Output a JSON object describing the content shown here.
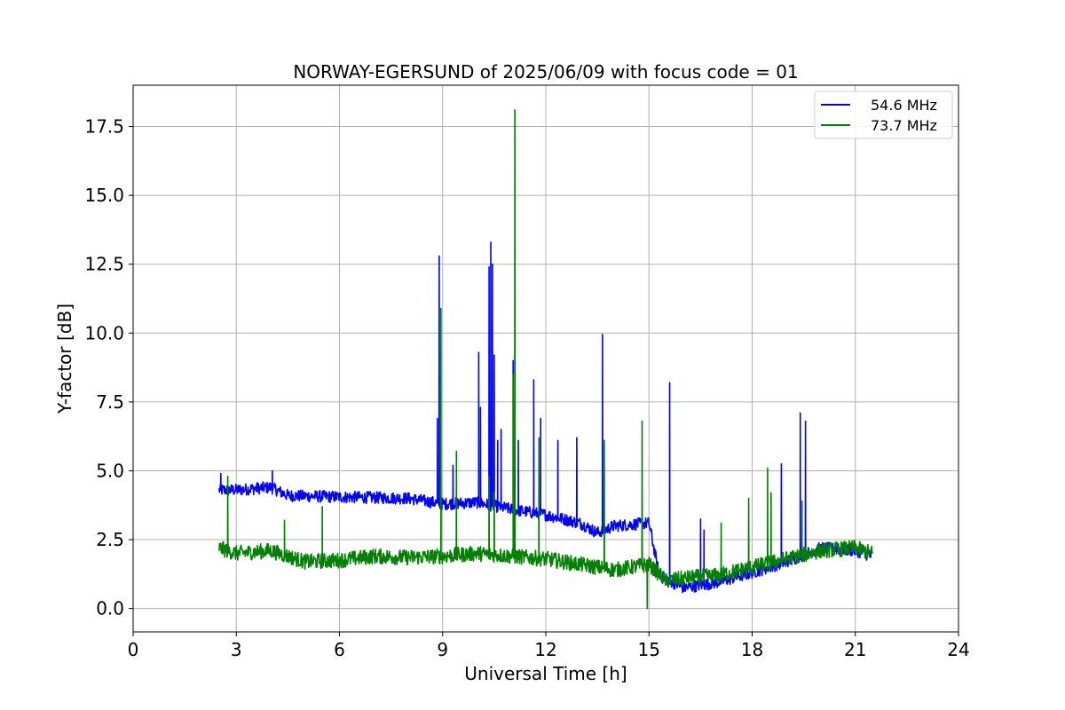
{
  "chart_data": {
    "type": "line",
    "title": "NORWAY-EGERSUND of 2025/06/09 with focus code = 01",
    "xlabel": "Universal Time [h]",
    "ylabel": "Y-factor [dB]",
    "xlim": [
      0,
      24
    ],
    "ylim": [
      -0.85,
      19.0
    ],
    "xticks": [
      0,
      3,
      6,
      9,
      12,
      15,
      18,
      21,
      24
    ],
    "xtick_labels": [
      "0",
      "3",
      "6",
      "9",
      "12",
      "15",
      "18",
      "21",
      "24"
    ],
    "yticks": [
      0,
      2.5,
      5,
      7.5,
      10,
      12.5,
      15,
      17.5
    ],
    "ytick_labels": [
      "0.0",
      "2.5",
      "5.0",
      "7.5",
      "10.0",
      "12.5",
      "15.0",
      "17.5"
    ],
    "grid": true,
    "legend_position": "top-right",
    "series": [
      {
        "name": "54.6 MHz",
        "color": "#0000ff",
        "baseline": [
          [
            2.5,
            4.3
          ],
          [
            3.0,
            4.3
          ],
          [
            4.0,
            4.4
          ],
          [
            4.5,
            4.1
          ],
          [
            6.0,
            4.05
          ],
          [
            8.0,
            4.0
          ],
          [
            9.0,
            3.8
          ],
          [
            10.0,
            3.85
          ],
          [
            11.0,
            3.6
          ],
          [
            12.0,
            3.4
          ],
          [
            13.0,
            3.1
          ],
          [
            13.5,
            2.75
          ],
          [
            14.0,
            3.0
          ],
          [
            15.0,
            3.1
          ],
          [
            15.3,
            1.2
          ],
          [
            16.0,
            0.75
          ],
          [
            17.0,
            0.95
          ],
          [
            18.0,
            1.3
          ],
          [
            19.0,
            1.7
          ],
          [
            20.0,
            2.2
          ],
          [
            21.0,
            2.1
          ],
          [
            21.5,
            1.9
          ]
        ],
        "noise": 0.22,
        "spikes": [
          [
            2.55,
            4.9
          ],
          [
            4.05,
            5.0
          ],
          [
            8.85,
            6.9
          ],
          [
            8.9,
            12.8
          ],
          [
            9.3,
            5.2
          ],
          [
            10.05,
            9.3
          ],
          [
            10.1,
            7.3
          ],
          [
            10.35,
            12.4
          ],
          [
            10.4,
            13.3
          ],
          [
            10.45,
            12.5
          ],
          [
            10.5,
            9.2
          ],
          [
            10.6,
            6.1
          ],
          [
            10.7,
            6.5
          ],
          [
            11.05,
            9.0
          ],
          [
            11.2,
            6.1
          ],
          [
            11.65,
            8.3
          ],
          [
            11.85,
            6.9
          ],
          [
            12.35,
            6.1
          ],
          [
            12.9,
            6.2
          ],
          [
            13.65,
            9.95
          ],
          [
            15.6,
            8.2
          ],
          [
            16.5,
            3.25
          ],
          [
            16.6,
            2.85
          ],
          [
            18.85,
            5.25
          ],
          [
            19.4,
            7.1
          ],
          [
            19.55,
            6.8
          ]
        ]
      },
      {
        "name": "73.7 MHz",
        "color": "#008000",
        "baseline": [
          [
            2.5,
            2.2
          ],
          [
            3.0,
            2.0
          ],
          [
            4.0,
            2.1
          ],
          [
            5.0,
            1.7
          ],
          [
            6.0,
            1.75
          ],
          [
            7.0,
            1.9
          ],
          [
            8.0,
            1.85
          ],
          [
            9.0,
            1.9
          ],
          [
            10.0,
            2.0
          ],
          [
            11.0,
            1.9
          ],
          [
            12.0,
            1.8
          ],
          [
            13.0,
            1.6
          ],
          [
            14.0,
            1.4
          ],
          [
            15.0,
            1.6
          ],
          [
            15.5,
            1.0
          ],
          [
            16.0,
            1.1
          ],
          [
            17.0,
            1.2
          ],
          [
            18.0,
            1.5
          ],
          [
            19.0,
            1.8
          ],
          [
            20.0,
            2.1
          ],
          [
            21.0,
            2.2
          ],
          [
            21.5,
            2.0
          ]
        ],
        "noise": 0.28,
        "spikes": [
          [
            2.75,
            4.8
          ],
          [
            4.4,
            3.2
          ],
          [
            5.5,
            3.7
          ],
          [
            8.95,
            10.9
          ],
          [
            9.4,
            5.7
          ],
          [
            10.35,
            4.8
          ],
          [
            10.5,
            4.2
          ],
          [
            11.05,
            8.5
          ],
          [
            11.1,
            18.1
          ],
          [
            11.8,
            6.2
          ],
          [
            13.7,
            6.1
          ],
          [
            14.8,
            6.8
          ],
          [
            14.95,
            0.0
          ],
          [
            17.1,
            3.1
          ],
          [
            17.9,
            4.0
          ],
          [
            18.45,
            5.1
          ],
          [
            18.55,
            4.2
          ],
          [
            19.45,
            3.9
          ]
        ]
      }
    ]
  }
}
